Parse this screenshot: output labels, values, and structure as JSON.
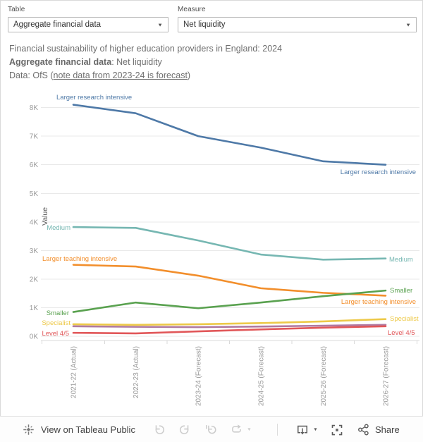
{
  "controls": {
    "table": {
      "label": "Table",
      "value": "Aggregate financial data"
    },
    "measure": {
      "label": "Measure",
      "value": "Net liquidity"
    }
  },
  "title": {
    "line1": "Financial sustainability of higher education providers in England: 2024",
    "line2_bold": "Aggregate financial data",
    "line2_rest": ": Net liquidity",
    "line3_prefix": "Data: OfS (",
    "line3_link": "note data from 2023-24 is forecast",
    "line3_suffix": ")"
  },
  "chart_data": {
    "type": "line",
    "ylabel": "Value",
    "ylim": [
      0,
      8.6
    ],
    "yticks": [
      "0K",
      "1K",
      "2K",
      "3K",
      "4K",
      "5K",
      "6K",
      "7K",
      "8K"
    ],
    "grid": "horizontal",
    "legend_position": "inline-labels-both-ends",
    "categories": [
      "2021-22 (Actual)",
      "2022-23 (Actual)",
      "2023-24 (Forecast)",
      "2024-25 (Forecast)",
      "2025-26 (Forecast)",
      "2026-27 (Forecast)"
    ],
    "series": [
      {
        "name": "Larger research intensive",
        "color": "#4e79a7",
        "values": [
          8.1,
          7.8,
          7.0,
          6.6,
          6.12,
          6.0
        ]
      },
      {
        "name": "Medium",
        "color": "#76b7b2",
        "values": [
          3.82,
          3.79,
          3.35,
          2.86,
          2.68,
          2.72
        ]
      },
      {
        "name": "Larger teaching intensive",
        "color": "#f28e2b",
        "values": [
          2.5,
          2.44,
          2.12,
          1.68,
          1.52,
          1.42
        ]
      },
      {
        "name": "Smaller",
        "color": "#59a14f",
        "values": [
          0.85,
          1.18,
          0.98,
          1.18,
          1.4,
          1.6
        ]
      },
      {
        "name": "Specialist",
        "color": "#edc949",
        "values": [
          0.42,
          0.4,
          0.42,
          0.46,
          0.52,
          0.6
        ]
      },
      {
        "name": "",
        "color": "#b07aa1",
        "values": [
          0.35,
          0.33,
          0.32,
          0.34,
          0.37,
          0.4
        ]
      },
      {
        "name": "Level 4/5",
        "color": "#e15759",
        "values": [
          0.12,
          0.1,
          0.17,
          0.24,
          0.3,
          0.35
        ]
      }
    ]
  },
  "toolbar": {
    "view_on_label": "View on Tableau Public",
    "share_label": "Share",
    "accent_disabled": "#cccccc",
    "accent_enabled": "#5c5c5c"
  }
}
